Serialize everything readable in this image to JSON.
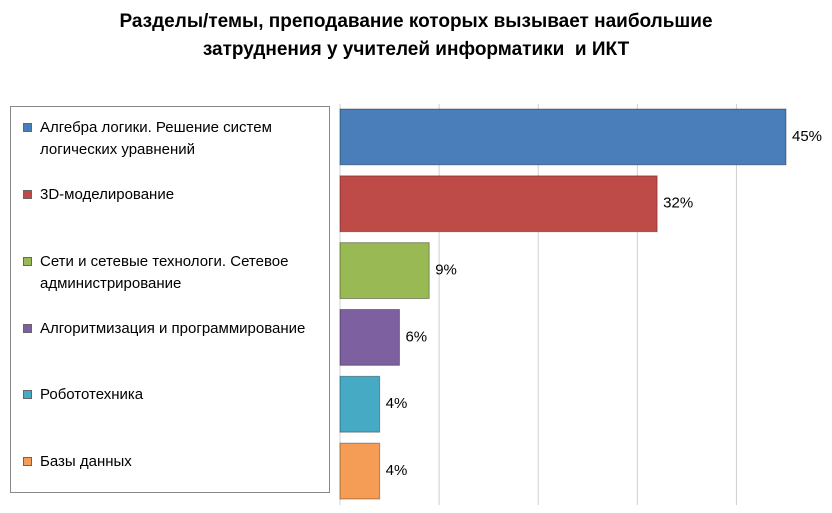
{
  "chart_data": {
    "type": "bar",
    "orientation": "horizontal",
    "title": "Разделы/темы, преподавание которых вызывает наибольшие затруднения у учителей информатики  и ИКТ",
    "categories": [
      "Алгебра логики. Решение систем логических уравнений",
      "3D-моделирование",
      "Сети и сетевые технологи. Сетевое администрирование",
      "Алгоритмизация и программирование",
      "Робототехника",
      "Базы данных"
    ],
    "values": [
      45,
      32,
      9,
      6,
      4,
      4
    ],
    "value_labels": [
      "45%",
      "32%",
      "9%",
      "6%",
      "4%",
      "4%"
    ],
    "colors": [
      "#4a7ebb",
      "#be4b48",
      "#98b954",
      "#7d60a0",
      "#46aac5",
      "#f59d56"
    ],
    "xlim": [
      0,
      45
    ],
    "xticks": [
      0,
      10,
      20,
      30,
      40
    ],
    "grid": true,
    "legend": "left"
  }
}
